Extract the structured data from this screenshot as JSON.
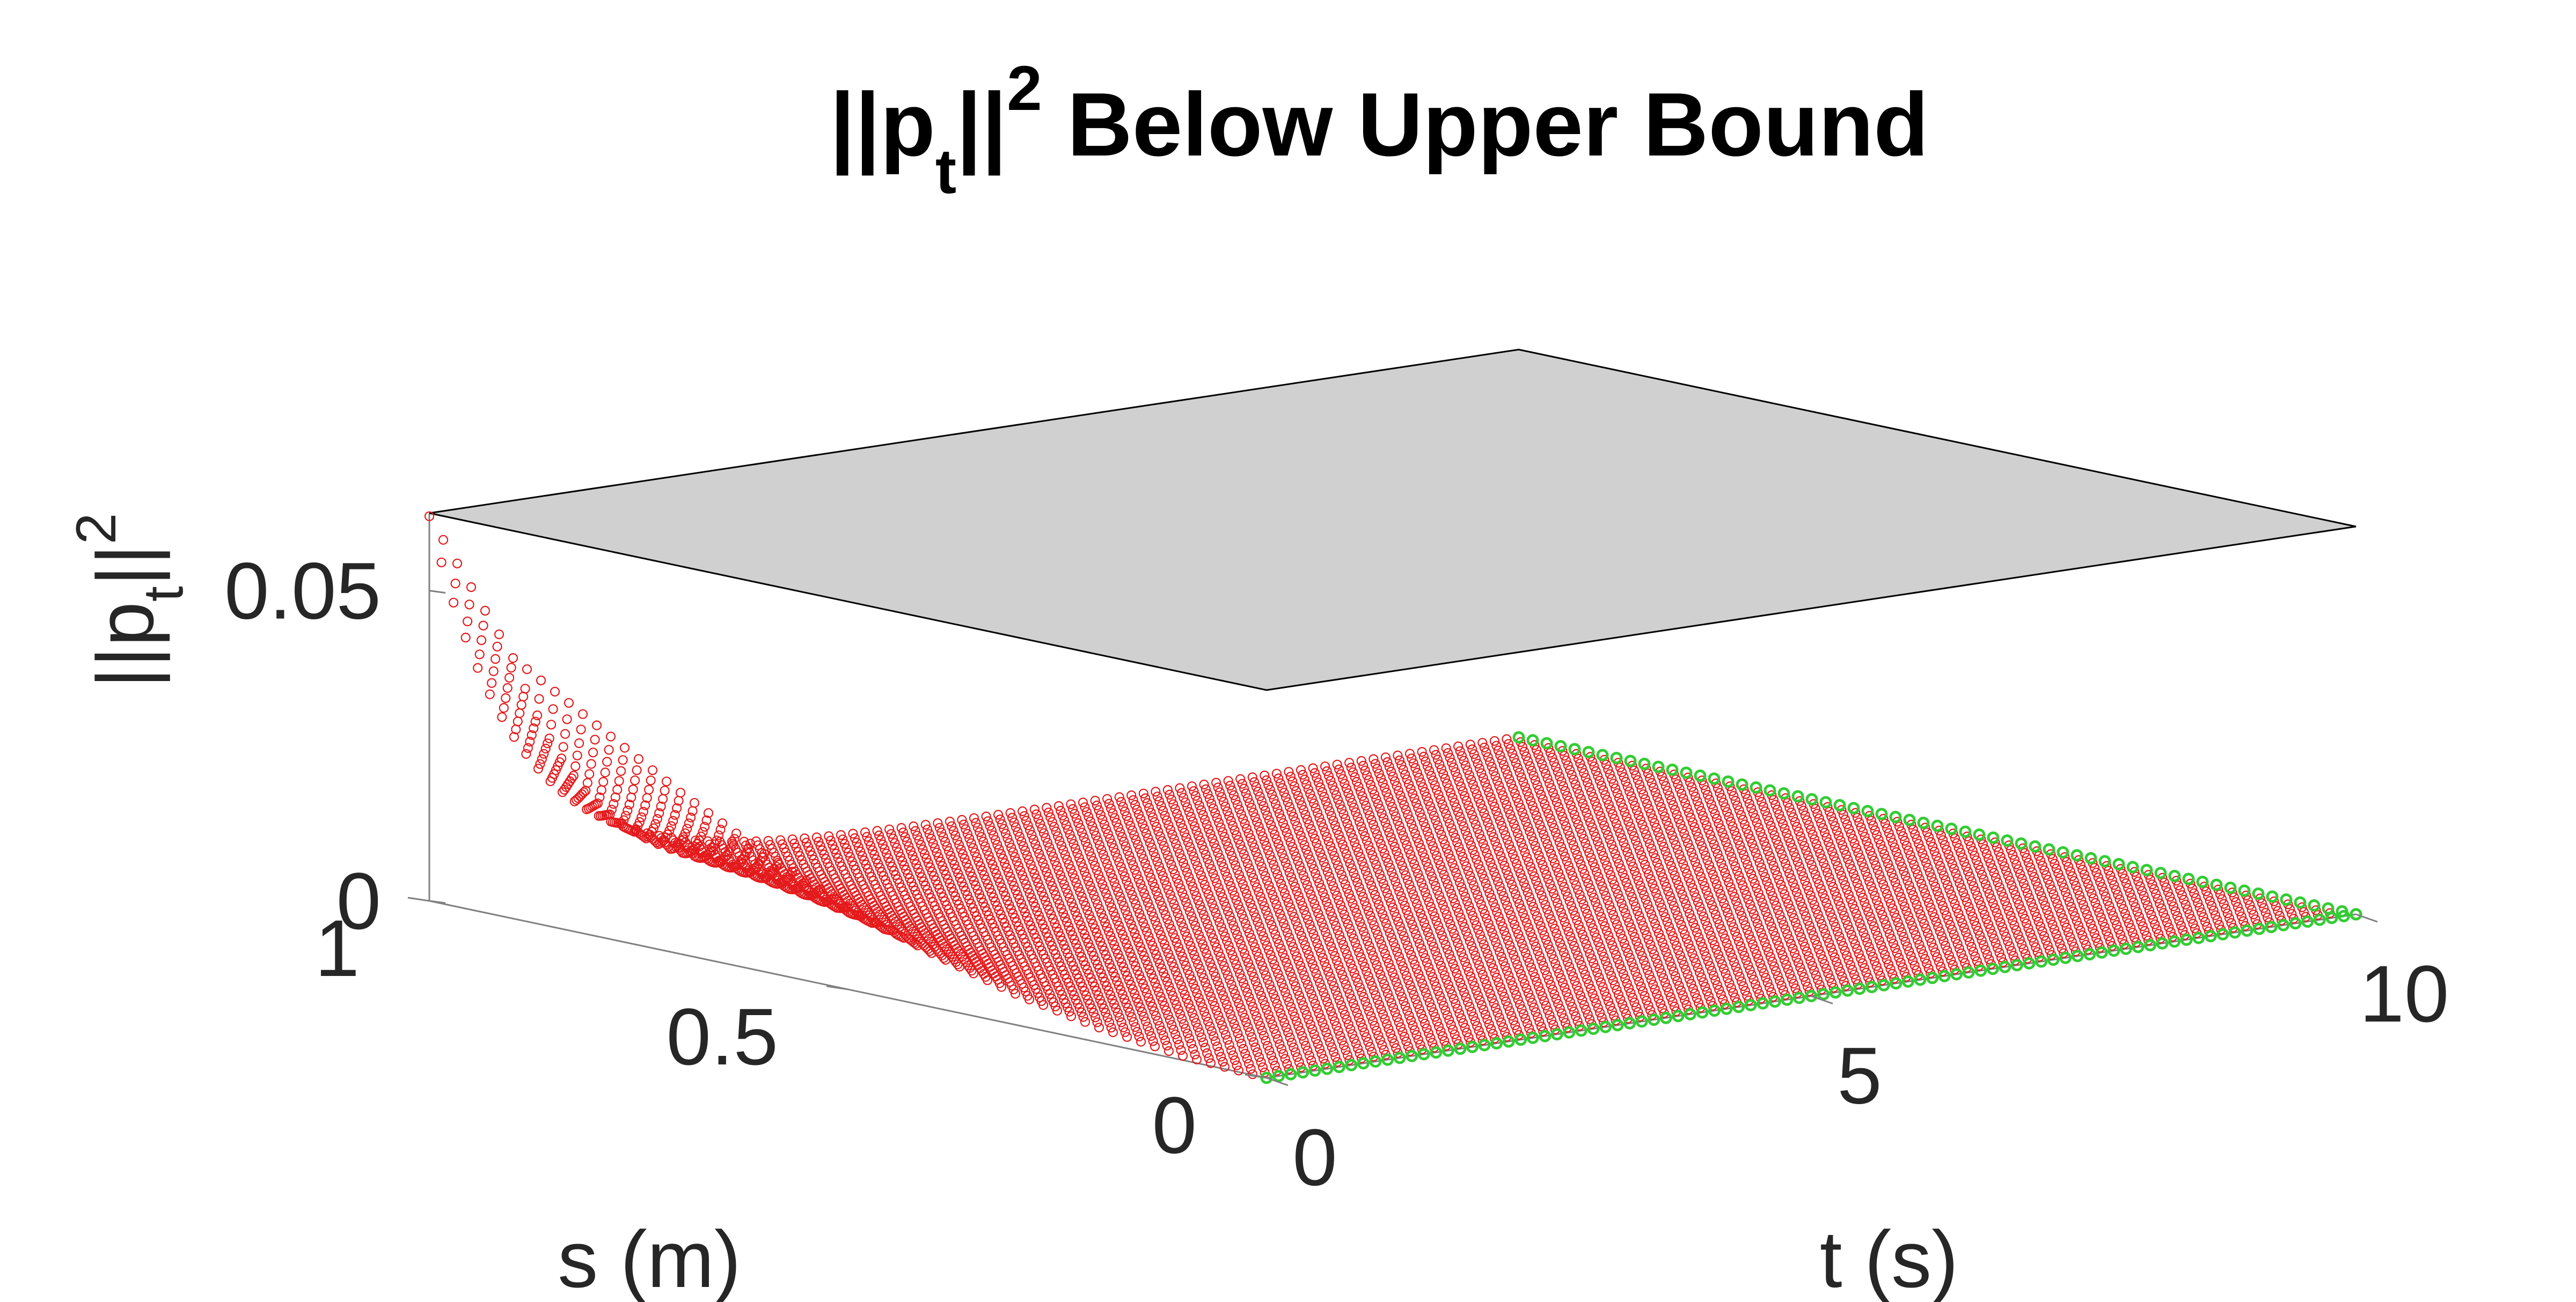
{
  "chart_data": {
    "type": "scatter",
    "view": "3d",
    "title": {
      "base": "||p",
      "sub": "t",
      "tail": "||",
      "sup": "2",
      "rest": " Below Upper Bound"
    },
    "xlabel": "t (s)",
    "ylabel": "s (m)",
    "zlabel": {
      "base": "||p",
      "sub": "t",
      "tail": "||",
      "sup": "2"
    },
    "xlim": [
      0,
      10
    ],
    "ylim": [
      0,
      1
    ],
    "zlim": [
      0,
      0.06
    ],
    "xticks": [
      {
        "v": 0,
        "label": "0"
      },
      {
        "v": 5,
        "label": "5"
      },
      {
        "v": 10,
        "label": "10"
      }
    ],
    "yticks": [
      {
        "v": 0,
        "label": "0"
      },
      {
        "v": 0.5,
        "label": "0.5"
      },
      {
        "v": 1,
        "label": "1"
      }
    ],
    "zticks": [
      {
        "v": 0,
        "label": "0"
      },
      {
        "v": 0.05,
        "label": "0.05"
      }
    ],
    "grid": false,
    "upper_bound": {
      "name": "upper bound",
      "z": 0.0625,
      "color": "#d0d0d0",
      "edge_color": "#000000"
    },
    "series": [
      {
        "marker": "circle",
        "color": "#e41a1c",
        "surface": "||p_t||^2(s,t)",
        "s_samples": [
          0,
          0.1,
          0.2,
          0.3,
          0.4,
          0.5,
          0.6,
          0.7,
          0.8,
          0.9,
          1.0
        ],
        "t_samples": [
          0,
          1,
          2,
          3,
          4,
          5,
          6,
          7,
          8,
          9,
          10
        ],
        "z_at_t0": [
          0.0,
          0.0007,
          0.0024,
          0.005,
          0.0087,
          0.0132,
          0.019,
          0.026,
          0.034,
          0.042,
          0.062
        ],
        "decay": "z(s,t) = z(s,0) * exp(-1.2 t)"
      },
      {
        "marker": "circle",
        "color": "#33cc33",
        "edges": "s=0 and t=10",
        "z": 0
      }
    ]
  }
}
